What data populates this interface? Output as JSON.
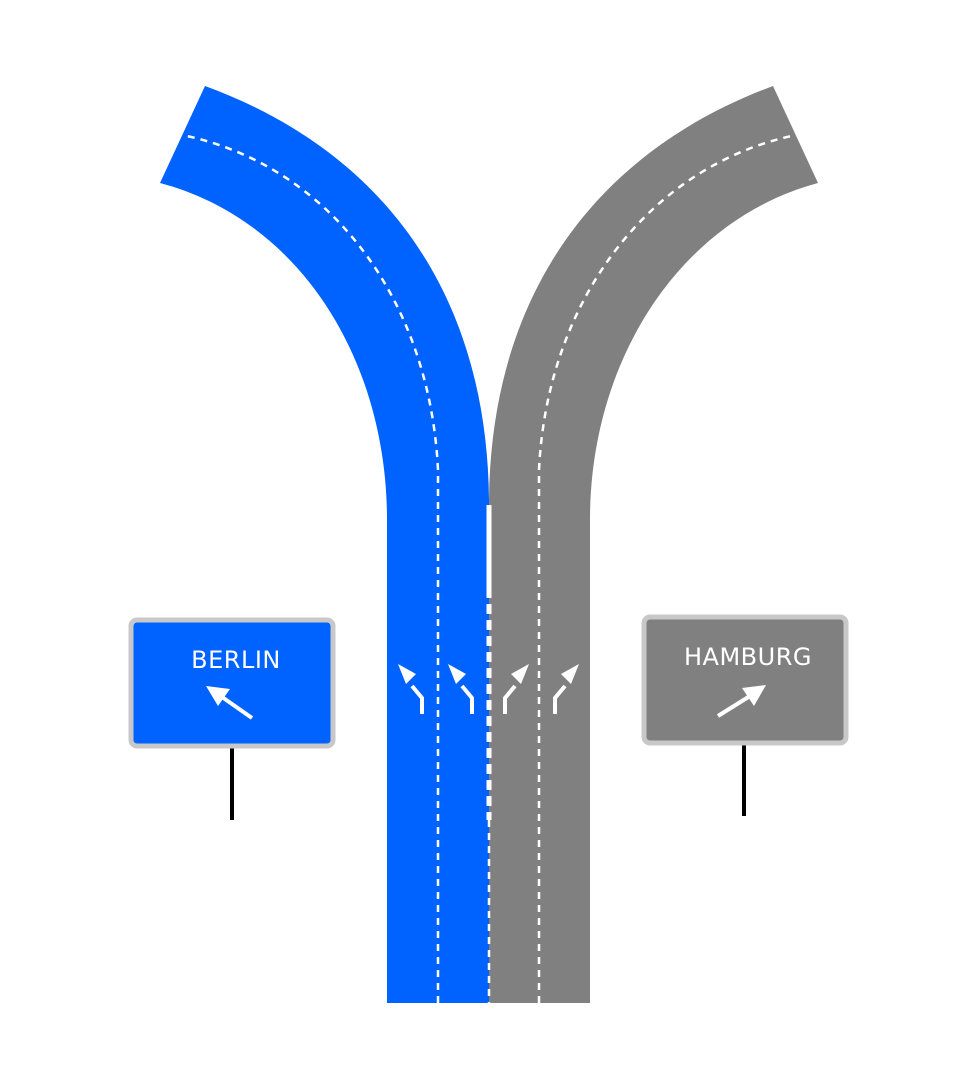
{
  "colors": {
    "left_road": "#0062ff",
    "right_road": "#808080",
    "lane_marking": "#ffffff",
    "sign_border": "#c8c8c8",
    "sign_text": "#ffffff",
    "sign_post": "#000000",
    "background": "#ffffff"
  },
  "roads": {
    "left_branch": {
      "color_key": "left_road",
      "lanes": 2
    },
    "right_branch": {
      "color_key": "right_road",
      "lanes": 2
    }
  },
  "lane_arrows": [
    {
      "lane": 1,
      "direction": "left",
      "icon": "curved-left-arrow-icon"
    },
    {
      "lane": 2,
      "direction": "left",
      "icon": "curved-left-arrow-icon"
    },
    {
      "lane": 3,
      "direction": "right",
      "icon": "curved-right-arrow-icon"
    },
    {
      "lane": 4,
      "direction": "right",
      "icon": "curved-right-arrow-icon"
    }
  ],
  "signs": {
    "left": {
      "label": "BERLIN",
      "arrow": "up-left-arrow-icon",
      "color": "#0062ff"
    },
    "right": {
      "label": "HAMBURG",
      "arrow": "up-right-arrow-icon",
      "color": "#808080"
    }
  }
}
